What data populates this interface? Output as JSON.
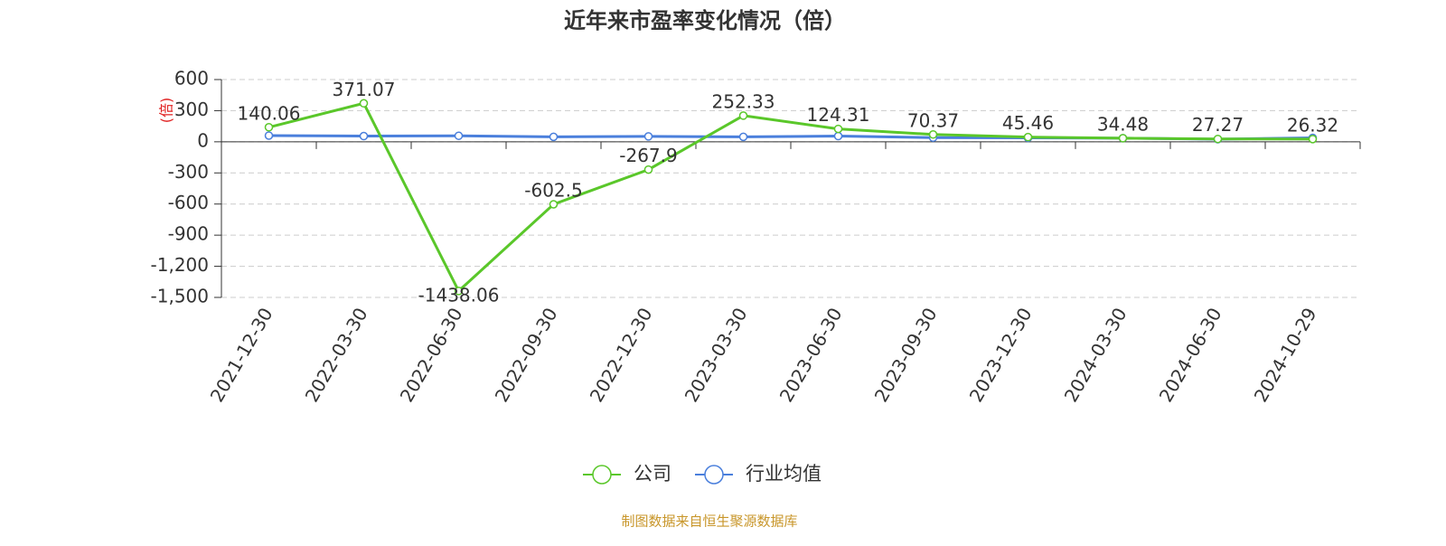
{
  "chart_data": {
    "type": "line",
    "title": "近年来市盈率变化情况（倍）",
    "y_label": "(倍)",
    "categories": [
      "2021-12-30",
      "2022-03-30",
      "2022-06-30",
      "2022-09-30",
      "2022-12-30",
      "2023-03-30",
      "2023-06-30",
      "2023-09-30",
      "2023-12-30",
      "2024-03-30",
      "2024-06-30",
      "2024-10-29"
    ],
    "series": [
      {
        "name": "公司",
        "color": "#5ac72a",
        "values": [
          140.06,
          371.07,
          -1438.06,
          -602.5,
          -267.9,
          252.33,
          124.31,
          70.37,
          45.46,
          34.48,
          27.27,
          26.32
        ],
        "labels": true
      },
      {
        "name": "行业均值",
        "color": "#4a7fdc",
        "values": [
          60,
          55,
          58,
          48,
          52,
          48,
          55,
          40,
          38,
          35,
          25,
          38
        ],
        "labels": false
      }
    ],
    "ylim": [
      -1500,
      600
    ],
    "yticks": [
      600,
      300,
      0,
      -300,
      -600,
      -900,
      {
        "value": -1200,
        "label": "-1,200"
      },
      {
        "value": -1500,
        "label": "-1,500"
      }
    ],
    "grid": true,
    "source": "制图数据来自恒生聚源数据库"
  }
}
